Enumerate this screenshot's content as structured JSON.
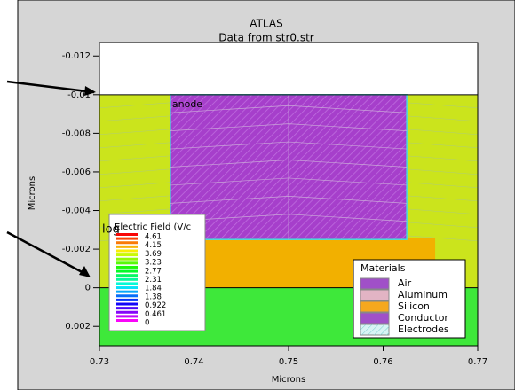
{
  "chart_data": {
    "type": "structure",
    "title": "ATLAS",
    "subtitle": "Data from str0.str",
    "x_label": "Microns",
    "y_label": "Microns",
    "xlim": [
      0.73,
      0.77
    ],
    "xticks": [
      0.73,
      0.74,
      0.75,
      0.76,
      0.77
    ],
    "ylim": [
      -0.0127,
      0.003
    ],
    "yticks": [
      -0.012,
      -0.01,
      -0.008,
      -0.006,
      -0.004,
      -0.002,
      0,
      0.002
    ],
    "y_inverted": true,
    "regions": [
      {
        "x": [
          0.73,
          0.77
        ],
        "y": [
          -0.0127,
          -0.01
        ],
        "color": "#ffffff"
      },
      {
        "x": [
          0.73,
          0.77
        ],
        "y": [
          -0.01,
          0
        ],
        "color": "#cbe41c"
      },
      {
        "x": [
          0.7345,
          0.7655
        ],
        "y": [
          -0.0026,
          0
        ],
        "color": "#f2b000"
      },
      {
        "x": [
          0.73,
          0.77
        ],
        "y": [
          0,
          0.003
        ],
        "color": "#3ee83a"
      },
      {
        "x": [
          0.7375,
          0.7625
        ],
        "y": [
          -0.01,
          -0.0025
        ],
        "color": "#a63fcb",
        "hatch": true
      }
    ],
    "annotation": "anode",
    "colorbar": {
      "title": "Electric Field (V/c",
      "scale_label": "log",
      "ticks": [
        4.61,
        4.15,
        3.69,
        3.23,
        2.77,
        2.31,
        1.84,
        1.38,
        0.922,
        0.461,
        0
      ]
    },
    "legend": {
      "title": "Materials",
      "position": "lower right",
      "items": [
        {
          "name": "Air",
          "color": "#a050c8"
        },
        {
          "name": "Aluminum",
          "color": "#e2b4c4"
        },
        {
          "name": "Silicon",
          "color": "#f5a81e"
        },
        {
          "name": "Conductor",
          "color": "#a050c8"
        },
        {
          "name": "Electrodes",
          "color": "#d8f4f4",
          "hatch": true
        }
      ]
    }
  }
}
